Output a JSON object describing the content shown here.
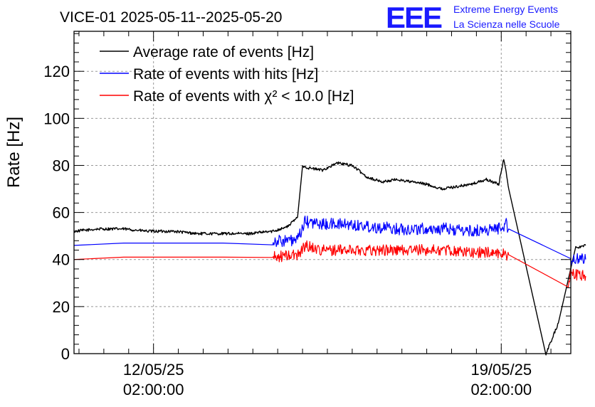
{
  "chart_data": {
    "type": "line",
    "title": "VICE-01 2025-05-11--2025-05-20",
    "ylabel": "Rate [Hz]",
    "xlabel": "",
    "ylim": [
      0,
      137
    ],
    "xlim": [
      0,
      10
    ],
    "yticks": [
      0,
      20,
      40,
      60,
      80,
      100,
      120
    ],
    "xticks": [
      {
        "x": 1.6,
        "date": "12/05/25",
        "time": "02:00:00"
      },
      {
        "x": 8.6,
        "date": "19/05/25",
        "time": "02:00:00"
      }
    ],
    "grid": true,
    "legend_position": "top-left",
    "series": [
      {
        "name": "Average rate of events [Hz]",
        "color": "#000000",
        "noise": 0.6,
        "x": [
          0,
          0.5,
          1.0,
          1.5,
          2.0,
          2.5,
          3.0,
          3.5,
          4.0,
          4.3,
          4.5,
          4.6,
          4.7,
          5.0,
          5.3,
          5.6,
          5.9,
          6.2,
          6.5,
          6.8,
          7.1,
          7.4,
          7.7,
          8.0,
          8.3,
          8.55,
          8.65,
          8.75,
          9.5,
          9.75,
          10.1,
          10.3
        ],
        "values": [
          52,
          53,
          53,
          52,
          52,
          51,
          51,
          51,
          52,
          54,
          58,
          80,
          79,
          78,
          81,
          80,
          75,
          73,
          74,
          73,
          72,
          70,
          71,
          72,
          74,
          72,
          83,
          70,
          0,
          13,
          45,
          46
        ]
      },
      {
        "name": "Rate of events with hits [Hz]",
        "color": "#0000ff",
        "noise": 2.6,
        "x": [
          0,
          1.0,
          2.0,
          3.0,
          4.0,
          4.5,
          4.65,
          5.0,
          5.5,
          6.0,
          6.5,
          7.0,
          7.5,
          8.0,
          8.5,
          8.7,
          8.75,
          10.0,
          10.3
        ],
        "values": [
          46,
          47,
          47,
          47,
          48,
          48,
          56,
          55,
          55,
          54,
          53,
          53,
          53,
          52,
          53,
          55,
          53,
          40,
          40
        ]
      },
      {
        "name": "Rate of events with χ² < 10.0 [Hz]",
        "color": "#ff0000",
        "noise": 2.4,
        "x": [
          0,
          1.0,
          2.0,
          3.0,
          4.0,
          4.5,
          4.65,
          5.0,
          5.5,
          6.0,
          6.5,
          7.0,
          7.5,
          8.0,
          8.5,
          8.7,
          8.75,
          9.95,
          10.0,
          10.3
        ],
        "values": [
          40,
          41,
          41,
          41,
          41,
          42,
          46,
          44,
          44,
          44,
          44,
          44,
          44,
          43,
          43,
          42,
          42,
          30,
          34,
          33
        ]
      }
    ]
  },
  "logo": {
    "mark": "EEE",
    "line1": "Extreme Energy Events",
    "line2": "La Scienza nelle Scuole"
  }
}
